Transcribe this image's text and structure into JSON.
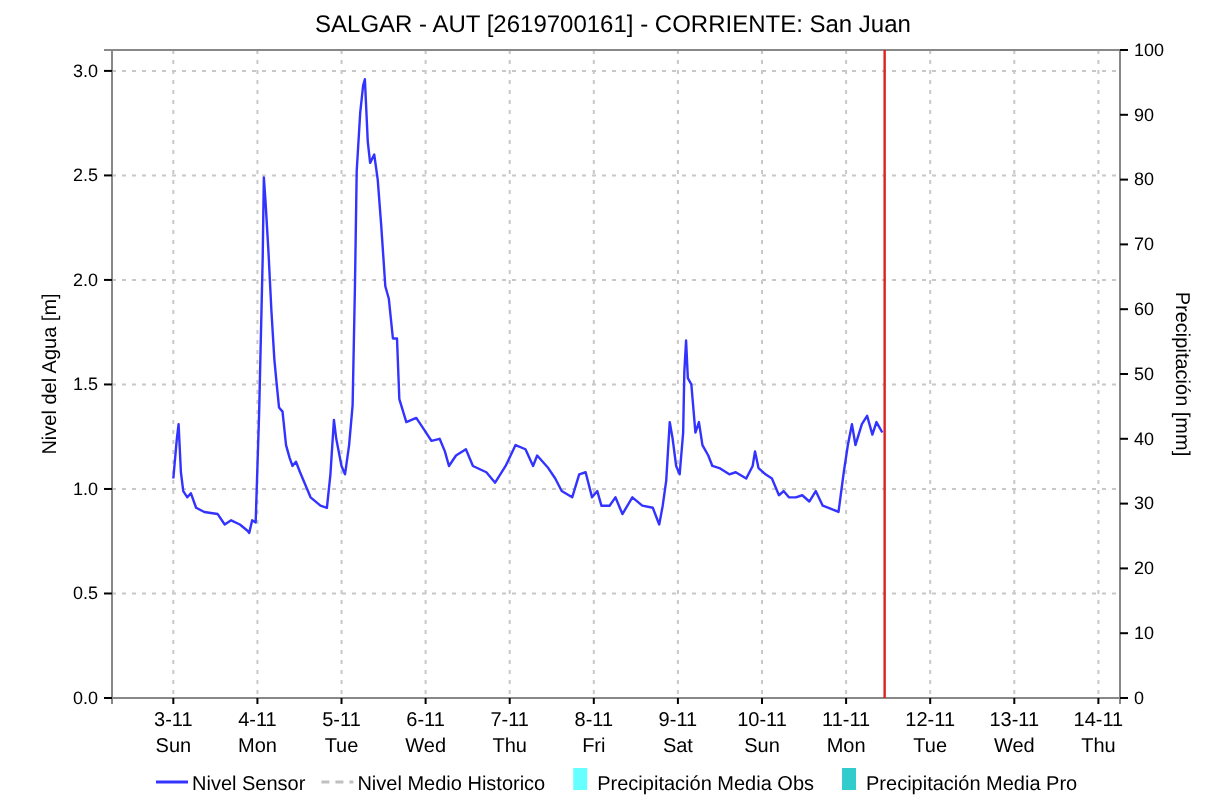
{
  "chart_data": {
    "type": "line",
    "title": "SALGAR - AUT   [2619700161] - CORRIENTE: San Juan",
    "ylabel": "Nivel del Agua [m]",
    "y2label": "Precipitación [mm]",
    "xlim": [
      "--11-02T06:30",
      "--11-14T06:10"
    ],
    "xticks": [
      {
        "value": "--11-03",
        "label": "3-11\nSun"
      },
      {
        "value": "--11-04",
        "label": "4-11\nMon"
      },
      {
        "value": "--11-05",
        "label": "5-11\nTue"
      },
      {
        "value": "--11-06",
        "label": "6-11\nWed"
      },
      {
        "value": "--11-07",
        "label": "7-11\nThu"
      },
      {
        "value": "--11-08",
        "label": "8-11\nFri"
      },
      {
        "value": "--11-09",
        "label": "9-11\nSat"
      },
      {
        "value": "--11-10",
        "label": "10-11\nSun"
      },
      {
        "value": "--11-11",
        "label": "11-11\nMon"
      },
      {
        "value": "--11-12",
        "label": "12-11\nTue"
      },
      {
        "value": "--11-13",
        "label": "13-11\nWed"
      },
      {
        "value": "--11-14",
        "label": "14-11\nThu"
      }
    ],
    "ylim": [
      0,
      3.1
    ],
    "yticks": [
      {
        "value": 0,
        "label": "0.0"
      },
      {
        "value": 0.5,
        "label": "0.5"
      },
      {
        "value": 1,
        "label": "1.0"
      },
      {
        "value": 1.5,
        "label": "1.5"
      },
      {
        "value": 2,
        "label": "2.0"
      },
      {
        "value": 2.5,
        "label": "2.5"
      },
      {
        "value": 3,
        "label": "3.0"
      }
    ],
    "y2lim": [
      0,
      100
    ],
    "y2ticks": [
      0,
      10,
      20,
      30,
      40,
      50,
      60,
      70,
      80,
      90,
      100
    ],
    "grid": true,
    "legend": "bottom",
    "ref_lines": [
      {
        "axis": "x",
        "value": "--11-11T11:00",
        "color": "#e02020"
      }
    ],
    "series": [
      {
        "name": "Nivel Sensor",
        "color": "#3333ff",
        "line_style": "solid",
        "x": [
          "--11-03T00:00",
          "--11-03T01:00",
          "--11-03T01:30",
          "--11-03T02:10",
          "--11-03T02:50",
          "--11-03T04:00",
          "--11-03T05:00",
          "--11-03T06:30",
          "--11-03T08:50",
          "--11-03T12:40",
          "--11-03T14:40",
          "--11-03T16:30",
          "--11-03T19:00",
          "--11-03T21:10",
          "--11-03T21:40",
          "--11-03T22:30",
          "--11-03T23:30",
          "--11-04T00:30",
          "--11-04T01:30",
          "--11-04T01:50",
          "--11-04T02:20",
          "--11-04T03:10",
          "--11-04T04:00",
          "--11-04T04:50",
          "--11-04T05:20",
          "--11-04T06:10",
          "--11-04T07:10",
          "--11-04T08:10",
          "--11-04T09:10",
          "--11-04T10:00",
          "--11-04T11:00",
          "--11-04T12:10",
          "--11-04T13:40",
          "--11-04T15:10",
          "--11-04T18:00",
          "--11-04T19:50",
          "--11-04T20:50",
          "--11-04T21:50",
          "--11-04T22:30",
          "--11-05T00:00",
          "--11-05T01:00",
          "--11-05T02:10",
          "--11-05T03:10",
          "--11-05T03:50",
          "--11-05T04:20",
          "--11-05T05:20",
          "--11-05T06:10",
          "--11-05T06:40",
          "--11-05T07:30",
          "--11-05T08:10",
          "--11-05T09:20",
          "--11-05T10:20",
          "--11-05T11:20",
          "--11-05T12:30",
          "--11-05T13:30",
          "--11-05T14:40",
          "--11-05T15:50",
          "--11-05T16:30",
          "--11-05T18:30",
          "--11-05T21:20",
          "--11-05T23:20",
          "--11-06T01:40",
          "--11-06T04:00",
          "--11-06T05:30",
          "--11-06T06:40",
          "--11-06T08:40",
          "--11-06T11:30",
          "--11-06T13:30",
          "--11-06T17:20",
          "--11-06T19:50",
          "--11-06T22:50",
          "--11-07T01:40",
          "--11-07T04:30",
          "--11-07T06:40",
          "--11-07T07:50",
          "--11-07T11:00",
          "--11-07T13:00",
          "--11-07T14:50",
          "--11-07T17:50",
          "--11-07T19:50",
          "--11-07T21:40",
          "--11-07T23:30",
          "--11-08T01:00",
          "--11-08T02:10",
          "--11-08T04:30",
          "--11-08T06:10",
          "--11-08T08:10",
          "--11-08T11:00",
          "--11-08T13:50",
          "--11-08T16:50",
          "--11-08T18:40",
          "--11-08T19:40",
          "--11-08T20:40",
          "--11-08T21:40",
          "--11-08T22:30",
          "--11-08T23:30",
          "--11-09T00:30",
          "--11-09T01:30",
          "--11-09T01:50",
          "--11-09T02:20",
          "--11-09T02:50",
          "--11-09T03:50",
          "--11-09T05:00",
          "--11-09T06:00",
          "--11-09T07:00",
          "--11-09T08:40",
          "--11-09T09:50",
          "--11-09T11:50",
          "--11-09T14:40",
          "--11-09T16:30",
          "--11-09T19:30",
          "--11-09T21:20",
          "--11-09T22:00",
          "--11-09T23:00",
          "--11-10T01:00",
          "--11-10T02:50",
          "--11-10T04:50",
          "--11-10T06:10",
          "--11-10T07:40",
          "--11-10T09:40",
          "--11-10T11:30",
          "--11-10T13:30",
          "--11-10T15:20",
          "--11-10T17:20",
          "--11-10T19:00",
          "--11-10T21:50",
          "--11-10T23:20",
          "--11-11T00:30",
          "--11-11T01:40",
          "--11-11T02:40",
          "--11-11T04:30",
          "--11-11T06:00",
          "--11-11T07:30",
          "--11-11T08:40",
          "--11-11T10:20"
        ],
        "values": [
          1.05,
          1.24,
          1.31,
          1.08,
          0.99,
          0.96,
          0.98,
          0.91,
          0.89,
          0.88,
          0.83,
          0.85,
          0.83,
          0.8,
          0.79,
          0.85,
          0.84,
          1.37,
          2.1,
          2.49,
          2.37,
          2.13,
          1.85,
          1.62,
          1.53,
          1.39,
          1.37,
          1.21,
          1.15,
          1.11,
          1.13,
          1.08,
          1.02,
          0.96,
          0.92,
          0.91,
          1.07,
          1.33,
          1.24,
          1.11,
          1.07,
          1.21,
          1.4,
          1.97,
          2.52,
          2.8,
          2.93,
          2.96,
          2.66,
          2.56,
          2.6,
          2.48,
          2.26,
          1.97,
          1.91,
          1.72,
          1.72,
          1.43,
          1.32,
          1.34,
          1.29,
          1.23,
          1.24,
          1.18,
          1.11,
          1.16,
          1.19,
          1.11,
          1.08,
          1.03,
          1.11,
          1.21,
          1.19,
          1.11,
          1.16,
          1.1,
          1.05,
          0.99,
          0.96,
          1.07,
          1.08,
          0.96,
          0.99,
          0.92,
          0.92,
          0.96,
          0.88,
          0.96,
          0.92,
          0.91,
          0.83,
          0.92,
          1.04,
          1.32,
          1.24,
          1.11,
          1.07,
          1.27,
          1.56,
          1.71,
          1.53,
          1.5,
          1.27,
          1.32,
          1.21,
          1.16,
          1.11,
          1.1,
          1.07,
          1.08,
          1.05,
          1.11,
          1.18,
          1.1,
          1.07,
          1.05,
          0.97,
          0.99,
          0.96,
          0.96,
          0.97,
          0.94,
          0.99,
          0.92,
          0.91,
          0.89,
          1.08,
          1.21,
          1.31,
          1.21,
          1.31,
          1.35,
          1.26,
          1.32,
          1.27
        ]
      },
      {
        "name": "Nivel Medio Historico",
        "type": "line",
        "color": "#c0c0c0",
        "line_style": "dashed"
      },
      {
        "name": "Precipitación Media Obs",
        "type": "bar",
        "color": "#66ffff"
      },
      {
        "name": "Precipitación Media Pro",
        "type": "bar",
        "color": "#33cccc"
      }
    ]
  }
}
